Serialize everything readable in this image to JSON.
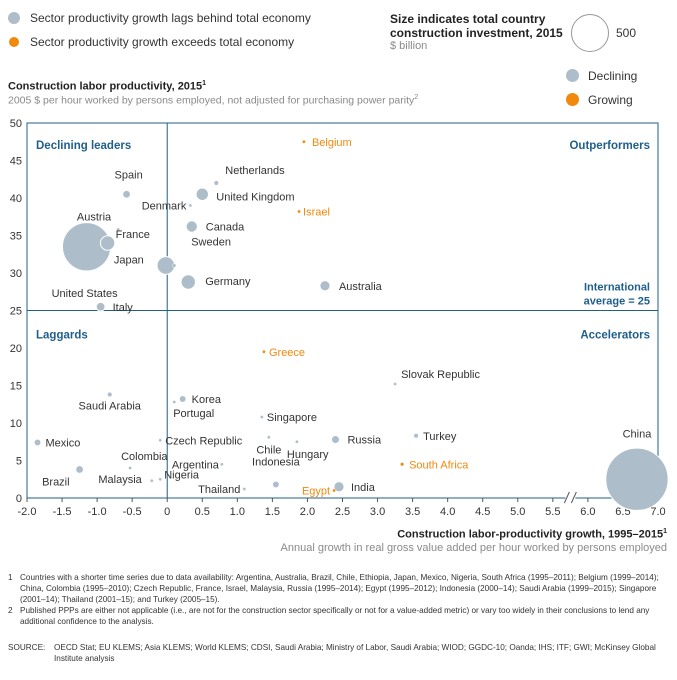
{
  "legend": {
    "lag_label": "Sector productivity growth lags behind total economy",
    "exceed_label": "Sector productivity growth exceeds total economy",
    "lag_color": "#aebdca",
    "exceed_color": "#f0890c"
  },
  "size_legend": {
    "title_line1": "Size indicates total country",
    "title_line2": "construction investment, 2015",
    "unit": "$ billion",
    "value": "500"
  },
  "trend_legend": {
    "declining": "Declining",
    "growing": "Growing"
  },
  "ytitle": {
    "main": "Construction labor productivity, 2015",
    "main_sup": "1",
    "sub": "2005 $ per hour worked by persons employed, not adjusted for purchasing power parity",
    "sub_sup": "2"
  },
  "xtitle": {
    "main": "Construction labor-productivity growth, 1995–2015",
    "main_sup": "1",
    "sub": "Annual growth in real gross value added per hour worked by persons employed"
  },
  "quadrants": {
    "top_left": "Declining leaders",
    "top_right": "Outperformers",
    "bottom_left": "Laggards",
    "bottom_right": "Accelerators",
    "avg_line1": "International",
    "avg_line2": "average = 25"
  },
  "footnotes": {
    "n1": "Countries with a shorter time series due to data availability: Argentina, Australia, Brazil, Chile, Ethiopia, Japan, Mexico, Nigeria, South Africa (1995–2011); Belgium (1999–2014); China, Colombia (1995–2010); Czech Republic, France, Israel, Malaysia, Russia (1995–2014); Egypt (1995–2012); Indonesia (2000–14); Saudi Arabia (1999–2015); Singapore (2001–14); Thailand (2001–15); and Turkey (2005–15).",
    "n2": "Published PPPs are either not applicable (i.e., are not for the construction sector specifically or not for a value-added metric) or vary too widely in their conclusions to lend any additional confidence to the analysis.",
    "source_label": "SOURCE:",
    "source_text": "OECD Stat; EU KLEMS; Asia KLEMS; World KLEMS; CDSI, Saudi Arabia; Ministry of Labor, Saudi Arabia; WIOD; GGDC-10; Oanda;  IHS; ITF; GWI; McKinsey Global Institute analysis"
  },
  "chart_data": {
    "type": "scatter",
    "xlabel": "Construction labor-productivity growth, 1995–2015",
    "ylabel": "Construction labor productivity, 2015",
    "xlim": [
      -2.0,
      7.0
    ],
    "ylim": [
      0,
      50
    ],
    "x_axis_break": [
      5.5,
      6.0
    ],
    "x_ticks": [
      "-2.0",
      "-1.5",
      "-1.0",
      "-0.5",
      "0",
      "0.5",
      "1.0",
      "1.5",
      "2.0",
      "2.5",
      "3.0",
      "3.5",
      "4.0",
      "4.5",
      "5.0",
      "5.5",
      "6.0",
      "6.5",
      "7.0"
    ],
    "y_ticks": [
      "0",
      "5",
      "10",
      "15",
      "20",
      "25",
      "30",
      "35",
      "40",
      "45",
      "50"
    ],
    "reference_lines": {
      "x": 0,
      "y": 25
    },
    "grid": false,
    "point_size_unit": "$ billion construction investment",
    "points": [
      {
        "label": "Belgium",
        "x": 1.95,
        "y": 47.5,
        "size": 4,
        "trend": "growing"
      },
      {
        "label": "Spain",
        "x": -0.58,
        "y": 40.5,
        "size": 20,
        "trend": "declining"
      },
      {
        "label": "Netherlands",
        "x": 0.7,
        "y": 42.0,
        "size": 8,
        "trend": "declining"
      },
      {
        "label": "United Kingdom",
        "x": 0.5,
        "y": 40.5,
        "size": 60,
        "trend": "declining"
      },
      {
        "label": "Denmark",
        "x": 0.33,
        "y": 39.0,
        "size": 3,
        "trend": "declining"
      },
      {
        "label": "Israel",
        "x": 1.88,
        "y": 38.2,
        "size": 2,
        "trend": "growing"
      },
      {
        "label": "Canada",
        "x": 0.35,
        "y": 36.2,
        "size": 50,
        "trend": "declining"
      },
      {
        "label": "Austria",
        "x": -0.7,
        "y": 35.8,
        "size": 2,
        "trend": "declining"
      },
      {
        "label": "France",
        "x": -0.85,
        "y": 34.0,
        "size": 80,
        "trend": "declining"
      },
      {
        "label": "United States",
        "x": -1.15,
        "y": 33.5,
        "size": 900,
        "trend": "declining"
      },
      {
        "label": "Japan",
        "x": -0.02,
        "y": 31.0,
        "size": 120,
        "trend": "declining"
      },
      {
        "label": "Sweden",
        "x": 0.1,
        "y": 31.0,
        "size": 5,
        "trend": "declining"
      },
      {
        "label": "Germany",
        "x": 0.3,
        "y": 28.8,
        "size": 80,
        "trend": "declining"
      },
      {
        "label": "Australia",
        "x": 2.25,
        "y": 28.3,
        "size": 40,
        "trend": "declining"
      },
      {
        "label": "Italy",
        "x": -0.95,
        "y": 25.5,
        "size": 30,
        "trend": "declining"
      },
      {
        "label": "Greece",
        "x": 1.38,
        "y": 19.5,
        "size": 1,
        "trend": "growing"
      },
      {
        "label": "Slovak Republic",
        "x": 3.25,
        "y": 15.2,
        "size": 1,
        "trend": "declining"
      },
      {
        "label": "Saudi Arabia",
        "x": -0.82,
        "y": 13.8,
        "size": 8,
        "trend": "declining"
      },
      {
        "label": "Korea",
        "x": 0.22,
        "y": 13.2,
        "size": 15,
        "trend": "declining"
      },
      {
        "label": "Portugal",
        "x": 0.1,
        "y": 12.8,
        "size": 1,
        "trend": "declining"
      },
      {
        "label": "Singapore",
        "x": 1.35,
        "y": 10.8,
        "size": 2,
        "trend": "declining"
      },
      {
        "label": "Turkey",
        "x": 3.55,
        "y": 8.3,
        "size": 8,
        "trend": "declining"
      },
      {
        "label": "Chile",
        "x": 1.45,
        "y": 8.1,
        "size": 1,
        "trend": "declining"
      },
      {
        "label": "Czech Republic",
        "x": -0.1,
        "y": 7.7,
        "size": 1,
        "trend": "declining"
      },
      {
        "label": "Russia",
        "x": 2.4,
        "y": 7.8,
        "size": 25,
        "trend": "declining"
      },
      {
        "label": "Mexico",
        "x": -1.85,
        "y": 7.4,
        "size": 15,
        "trend": "declining"
      },
      {
        "label": "Hungary",
        "x": 1.85,
        "y": 7.5,
        "size": 1,
        "trend": "declining"
      },
      {
        "label": "Argentina",
        "x": 0.78,
        "y": 4.5,
        "size": 2,
        "trend": "declining"
      },
      {
        "label": "South Africa",
        "x": 3.35,
        "y": 4.5,
        "size": 5,
        "trend": "growing"
      },
      {
        "label": "Colombia",
        "x": -0.53,
        "y": 4.0,
        "size": 3,
        "trend": "declining"
      },
      {
        "label": "Brazil",
        "x": -1.25,
        "y": 3.8,
        "size": 20,
        "trend": "declining"
      },
      {
        "label": "Nigeria",
        "x": -0.1,
        "y": 2.5,
        "size": 3,
        "trend": "declining"
      },
      {
        "label": "Malaysia",
        "x": -0.22,
        "y": 2.3,
        "size": 3,
        "trend": "declining"
      },
      {
        "label": "Indonesia",
        "x": 1.55,
        "y": 1.8,
        "size": 15,
        "trend": "declining"
      },
      {
        "label": "China",
        "x": 6.7,
        "y": 2.5,
        "size": 1500,
        "trend": "declining"
      },
      {
        "label": "Thailand",
        "x": 1.1,
        "y": 1.2,
        "size": 3,
        "trend": "declining"
      },
      {
        "label": "Egypt",
        "x": 2.38,
        "y": 1.0,
        "size": 3,
        "trend": "growing"
      },
      {
        "label": "India",
        "x": 2.45,
        "y": 1.5,
        "size": 40,
        "trend": "declining"
      }
    ]
  }
}
